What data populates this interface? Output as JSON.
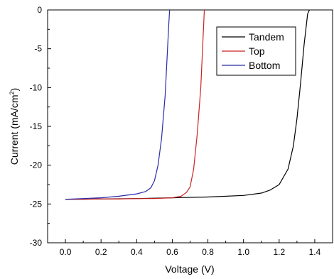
{
  "chart_data": {
    "type": "line",
    "title": "",
    "xlabel": "Voltage (V)",
    "ylabel_main": "Current (mA/cm",
    "ylabel_sup": "2",
    "ylabel_close": ")",
    "xlim": [
      -0.1,
      1.5
    ],
    "ylim": [
      -30,
      0
    ],
    "x_ticks": [
      0.0,
      0.2,
      0.4,
      0.6,
      0.8,
      1.0,
      1.2,
      1.4
    ],
    "x_tick_labels": [
      "0.0",
      "0.2",
      "0.4",
      "0.6",
      "0.8",
      "1.0",
      "1.2",
      "1.4"
    ],
    "y_ticks": [
      0,
      -5,
      -10,
      -15,
      -20,
      -25,
      -30
    ],
    "y_tick_labels": [
      "0",
      "-5",
      "-10",
      "-15",
      "-20",
      "-25",
      "-30"
    ],
    "legend_position": "top-right",
    "grid": false,
    "series": [
      {
        "name": "Tandem",
        "color": "#000000",
        "x": [
          0.0,
          0.2,
          0.4,
          0.6,
          0.8,
          1.0,
          1.1,
          1.15,
          1.2,
          1.25,
          1.28,
          1.3,
          1.32,
          1.34,
          1.36,
          1.37
        ],
        "y": [
          -24.4,
          -24.35,
          -24.3,
          -24.2,
          -24.1,
          -23.9,
          -23.6,
          -23.2,
          -22.5,
          -20.5,
          -17.5,
          -14.0,
          -9.5,
          -4.5,
          -0.5,
          0.0
        ]
      },
      {
        "name": "Top",
        "color": "#cc2222",
        "x": [
          0.0,
          0.1,
          0.2,
          0.3,
          0.4,
          0.5,
          0.6,
          0.65,
          0.68,
          0.7,
          0.72,
          0.74,
          0.76,
          0.77,
          0.78
        ],
        "y": [
          -24.4,
          -24.4,
          -24.35,
          -24.35,
          -24.3,
          -24.3,
          -24.2,
          -24.0,
          -23.5,
          -22.8,
          -20.5,
          -16.0,
          -10.0,
          -5.0,
          0.0
        ]
      },
      {
        "name": "Bottom",
        "color": "#2a2aaa",
        "x": [
          0.0,
          0.1,
          0.2,
          0.3,
          0.4,
          0.45,
          0.48,
          0.5,
          0.52,
          0.54,
          0.56,
          0.57,
          0.58,
          0.585
        ],
        "y": [
          -24.4,
          -24.3,
          -24.2,
          -24.0,
          -23.7,
          -23.4,
          -22.9,
          -22.0,
          -20.0,
          -16.5,
          -11.0,
          -6.5,
          -2.0,
          0.0
        ]
      }
    ]
  }
}
